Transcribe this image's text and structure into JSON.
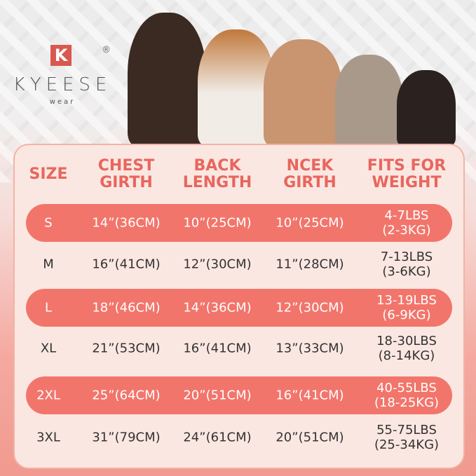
{
  "brand": {
    "logo_letter": "K",
    "name": "KYEESE",
    "sub": "wear",
    "registered": "®"
  },
  "colors": {
    "accent": "#f2756b",
    "header_text": "#e8665e",
    "card": "#fbe7e1"
  },
  "table": {
    "headers": [
      [
        "SIZE"
      ],
      [
        "CHEST",
        "GIRTH"
      ],
      [
        "BACK",
        "LENGTH"
      ],
      [
        "NCEK",
        "GIRTH"
      ],
      [
        "FITS FOR",
        "WEIGHT"
      ]
    ],
    "rows": [
      {
        "size": "S",
        "chest": "14”(36CM)",
        "back": "10”(25CM)",
        "neck": "10”(25CM)",
        "weight": [
          "4-7LBS",
          "(2-3KG)"
        ],
        "highlight": true
      },
      {
        "size": "M",
        "chest": "16”(41CM)",
        "back": "12”(30CM)",
        "neck": "11”(28CM)",
        "weight": [
          "7-13LBS",
          "(3-6KG)"
        ],
        "highlight": false
      },
      {
        "size": "L",
        "chest": "18”(46CM)",
        "back": "14”(36CM)",
        "neck": "12”(30CM)",
        "weight": [
          "13-19LBS",
          "(6-9KG)"
        ],
        "highlight": true
      },
      {
        "size": "XL",
        "chest": "21”(53CM)",
        "back": "16”(41CM)",
        "neck": "13”(33CM)",
        "weight": [
          "18-30LBS",
          "(8-14KG)"
        ],
        "highlight": false
      },
      {
        "size": "2XL",
        "chest": "25”(64CM)",
        "back": "20”(51CM)",
        "neck": "16”(41CM)",
        "weight": [
          "40-55LBS",
          "(18-25KG)"
        ],
        "highlight": true
      },
      {
        "size": "3XL",
        "chest": "31”(79CM)",
        "back": "24”(61CM)",
        "neck": "20”(51CM)",
        "weight": [
          "55-75LBS",
          "(25-34KG)"
        ],
        "highlight": false
      }
    ]
  }
}
